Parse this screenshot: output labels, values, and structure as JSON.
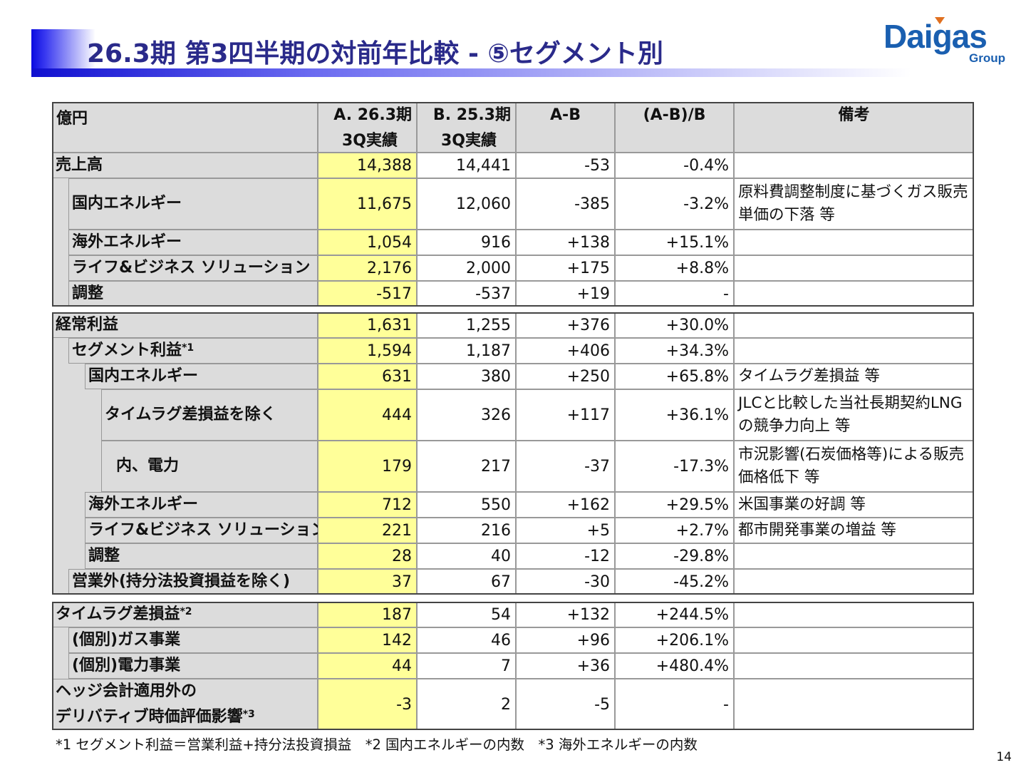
{
  "title": "26.3期 第3四半期の対前年比較 - ⑤セグメント別",
  "logo": {
    "text": "Daigas",
    "sub": "Group",
    "color": "#1a5fb0"
  },
  "table": {
    "headers": {
      "label": "億円",
      "a": [
        "A. 26.3期",
        "3Q実績"
      ],
      "b": [
        "B. 25.3期",
        "3Q実績"
      ],
      "ab": "A-B",
      "pct": "(A-B)/B",
      "note": "備考"
    },
    "sections": [
      {
        "rows": [
          {
            "label": "売上高",
            "level": 0,
            "a": "14,388",
            "b": "14,441",
            "ab": "-53",
            "pct": "-0.4%",
            "note": ""
          },
          {
            "label": "国内エネルギー",
            "level": 1,
            "a": "11,675",
            "b": "12,060",
            "ab": "-385",
            "pct": "-3.2%",
            "note": "原料費調整制度に基づくガス販売単価の下落 等",
            "tall": true
          },
          {
            "label": "海外エネルギー",
            "level": 1,
            "a": "1,054",
            "b": "916",
            "ab": "+138",
            "pct": "+15.1%",
            "note": ""
          },
          {
            "label": "ライフ&ビジネス ソリューション",
            "level": 1,
            "a": "2,176",
            "b": "2,000",
            "ab": "+175",
            "pct": "+8.8%",
            "note": ""
          },
          {
            "label": "調整",
            "level": 1,
            "a": "-517",
            "b": "-537",
            "ab": "+19",
            "pct": "-",
            "note": ""
          }
        ]
      },
      {
        "rows": [
          {
            "label": "経常利益",
            "level": 0,
            "a": "1,631",
            "b": "1,255",
            "ab": "+376",
            "pct": "+30.0%",
            "note": ""
          },
          {
            "label": "セグメント利益",
            "sup": "*1",
            "level": 1,
            "a": "1,594",
            "b": "1,187",
            "ab": "+406",
            "pct": "+34.3%",
            "note": ""
          },
          {
            "label": "国内エネルギー",
            "level": 2,
            "a": "631",
            "b": "380",
            "ab": "+250",
            "pct": "+65.8%",
            "note": "タイムラグ差損益 等"
          },
          {
            "label": "タイムラグ差損益を除く",
            "level": 3,
            "a": "444",
            "b": "326",
            "ab": "+117",
            "pct": "+36.1%",
            "note": "JLCと比較した当社長期契約LNGの競争力向上 等",
            "tall": true
          },
          {
            "label": "内、電力",
            "level": 3,
            "extra": true,
            "a": "179",
            "b": "217",
            "ab": "-37",
            "pct": "-17.3%",
            "note": "市況影響(石炭価格等)による販売価格低下 等",
            "tall": true
          },
          {
            "label": "海外エネルギー",
            "level": 2,
            "a": "712",
            "b": "550",
            "ab": "+162",
            "pct": "+29.5%",
            "note": "米国事業の好調 等"
          },
          {
            "label": "ライフ&ビジネス ソリューション",
            "level": 2,
            "a": "221",
            "b": "216",
            "ab": "+5",
            "pct": "+2.7%",
            "note": "都市開発事業の増益 等"
          },
          {
            "label": "調整",
            "level": 2,
            "a": "28",
            "b": "40",
            "ab": "-12",
            "pct": "-29.8%",
            "note": ""
          },
          {
            "label": "営業外(持分法投資損益を除く)",
            "level": 1,
            "a": "37",
            "b": "67",
            "ab": "-30",
            "pct": "-45.2%",
            "note": ""
          }
        ]
      },
      {
        "rows": [
          {
            "label": "タイムラグ差損益",
            "sup": "*2",
            "level": 0,
            "a": "187",
            "b": "54",
            "ab": "+132",
            "pct": "+244.5%",
            "note": ""
          },
          {
            "label": "(個別)ガス事業",
            "level": 1,
            "a": "142",
            "b": "46",
            "ab": "+96",
            "pct": "+206.1%",
            "note": ""
          },
          {
            "label": "(個別)電力事業",
            "level": 1,
            "a": "44",
            "b": "7",
            "ab": "+36",
            "pct": "+480.4%",
            "note": ""
          },
          {
            "label": "ヘッジ会計適用外の",
            "label2": "デリバティブ時価評価影響",
            "sup": "*3",
            "level": 0,
            "a": "-3",
            "b": "2",
            "ab": "-5",
            "pct": "-",
            "note": "",
            "tall": true
          }
        ]
      }
    ]
  },
  "footnote": "*1 セグメント利益＝営業利益+持分法投資損益　*2 国内エネルギーの内数　*3 海外エネルギーの内数",
  "page_number": "14"
}
